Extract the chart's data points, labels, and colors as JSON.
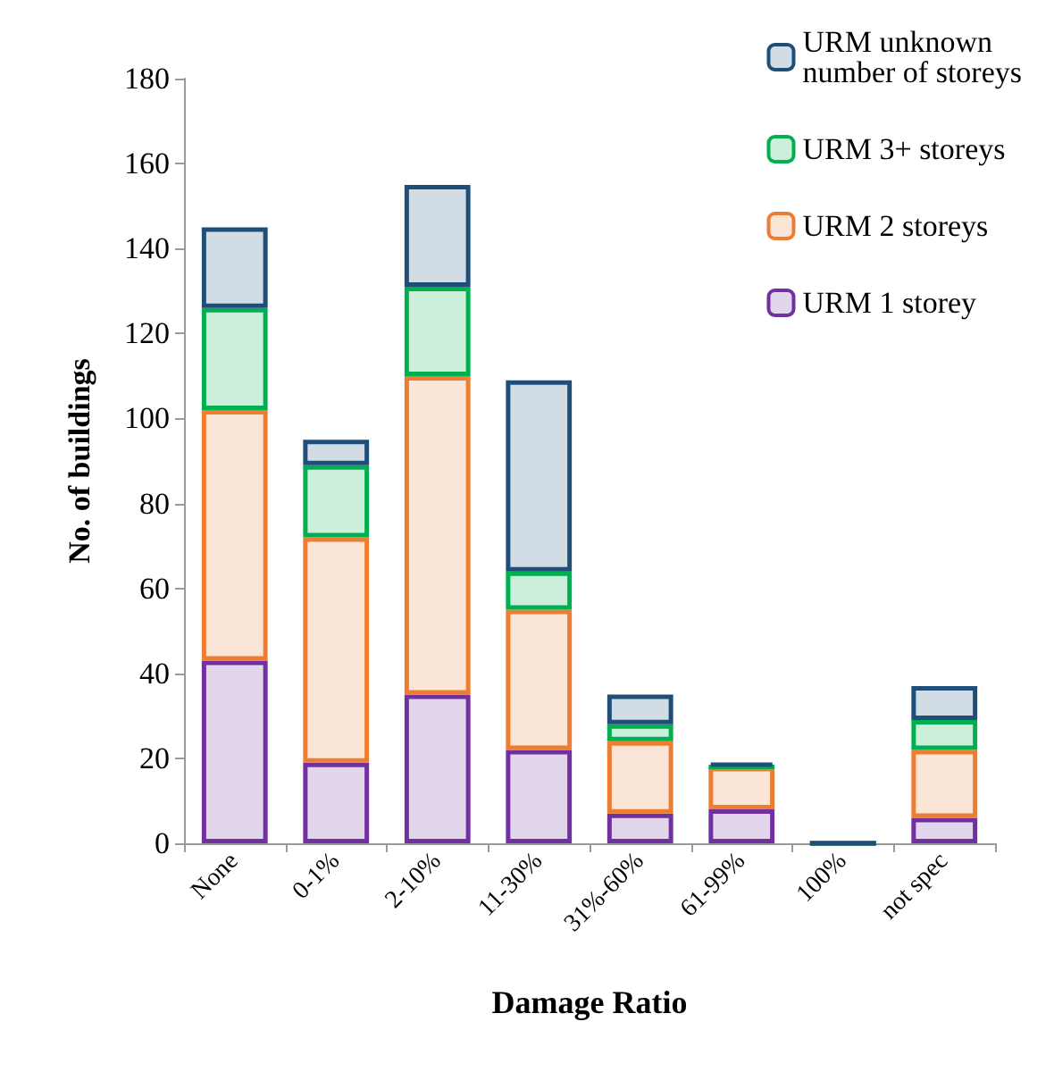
{
  "chart_data": {
    "type": "bar",
    "stacked": true,
    "xlabel": "Damage Ratio",
    "ylabel": "No. of buildings",
    "categories": [
      "None",
      "0-1%",
      "2-10%",
      "11-30%",
      "31%-60%",
      "61-99%",
      "100%",
      "not spec"
    ],
    "series": [
      {
        "name": "URM 1 storey",
        "color": "#7030a0",
        "values": [
          43,
          19,
          35,
          22,
          7,
          8,
          0,
          6
        ]
      },
      {
        "name": "URM 2 storeys",
        "color": "#ed7d31",
        "values": [
          59,
          53,
          75,
          33,
          17,
          10,
          0,
          16
        ]
      },
      {
        "name": "URM 3+ storeys",
        "color": "#00b050",
        "values": [
          24,
          17,
          21,
          9,
          4,
          0,
          0,
          7
        ]
      },
      {
        "name": "URM unknown number of storeys",
        "color": "#1f4e79",
        "values": [
          19,
          6,
          24,
          45,
          7,
          1,
          0,
          8
        ]
      }
    ],
    "ylim": [
      0,
      180
    ],
    "yticks": [
      0,
      20,
      40,
      60,
      80,
      100,
      120,
      140,
      160,
      180
    ],
    "grid": false,
    "legend": "top right"
  }
}
